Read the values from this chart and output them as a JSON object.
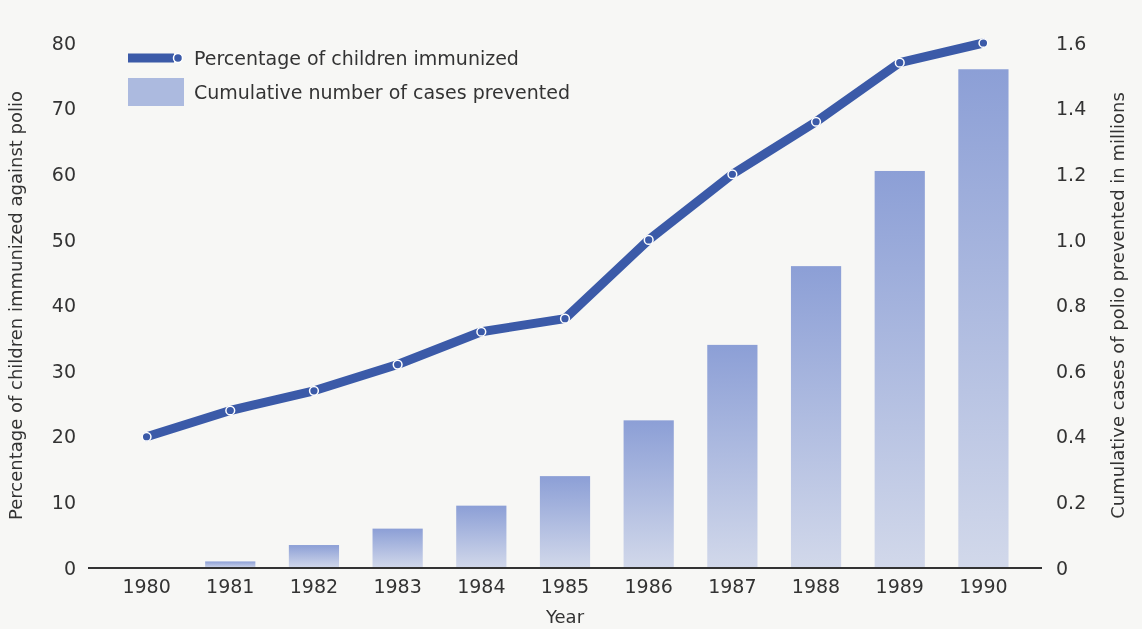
{
  "chart_data": {
    "type": "bar",
    "xlabel": "Year",
    "ylabel": "Percentage of children immunized against polio",
    "y2label": "Cumulative cases of polio prevented in millions",
    "categories": [
      "1980",
      "1981",
      "1982",
      "1983",
      "1984",
      "1985",
      "1986",
      "1987",
      "1988",
      "1989",
      "1990"
    ],
    "series": [
      {
        "name": "Percentage of children immunized",
        "type": "line",
        "color": "#3b5aa8",
        "marker": "circle",
        "values": [
          20,
          24,
          27,
          31,
          36,
          38,
          50,
          60,
          68,
          77,
          80
        ]
      },
      {
        "name": "Cumulative number of cases prevented",
        "axis": "y2",
        "color": "#8c9fd6",
        "values": [
          0,
          0.02,
          0.07,
          0.12,
          0.19,
          0.28,
          0.45,
          0.68,
          0.92,
          1.21,
          1.52
        ]
      }
    ],
    "ylim": [
      0,
      80
    ],
    "yticks": [
      0,
      10,
      20,
      30,
      40,
      50,
      60,
      70,
      80
    ],
    "y2lim": [
      0,
      1.6
    ],
    "y2ticks": [
      {
        "value": 0,
        "label": "0"
      },
      {
        "value": 0.2,
        "label": "0.2"
      },
      {
        "value": 0.4,
        "label": "0.4"
      },
      {
        "value": 0.6,
        "label": "0.6"
      },
      {
        "value": 0.8,
        "label": "0.8"
      },
      {
        "value": 1.0,
        "label": "1.0"
      },
      {
        "value": 1.2,
        "label": "1.2"
      },
      {
        "value": 1.4,
        "label": "1.4"
      },
      {
        "value": 1.6,
        "label": "1.6"
      }
    ],
    "legend": "top left",
    "grid": false
  }
}
